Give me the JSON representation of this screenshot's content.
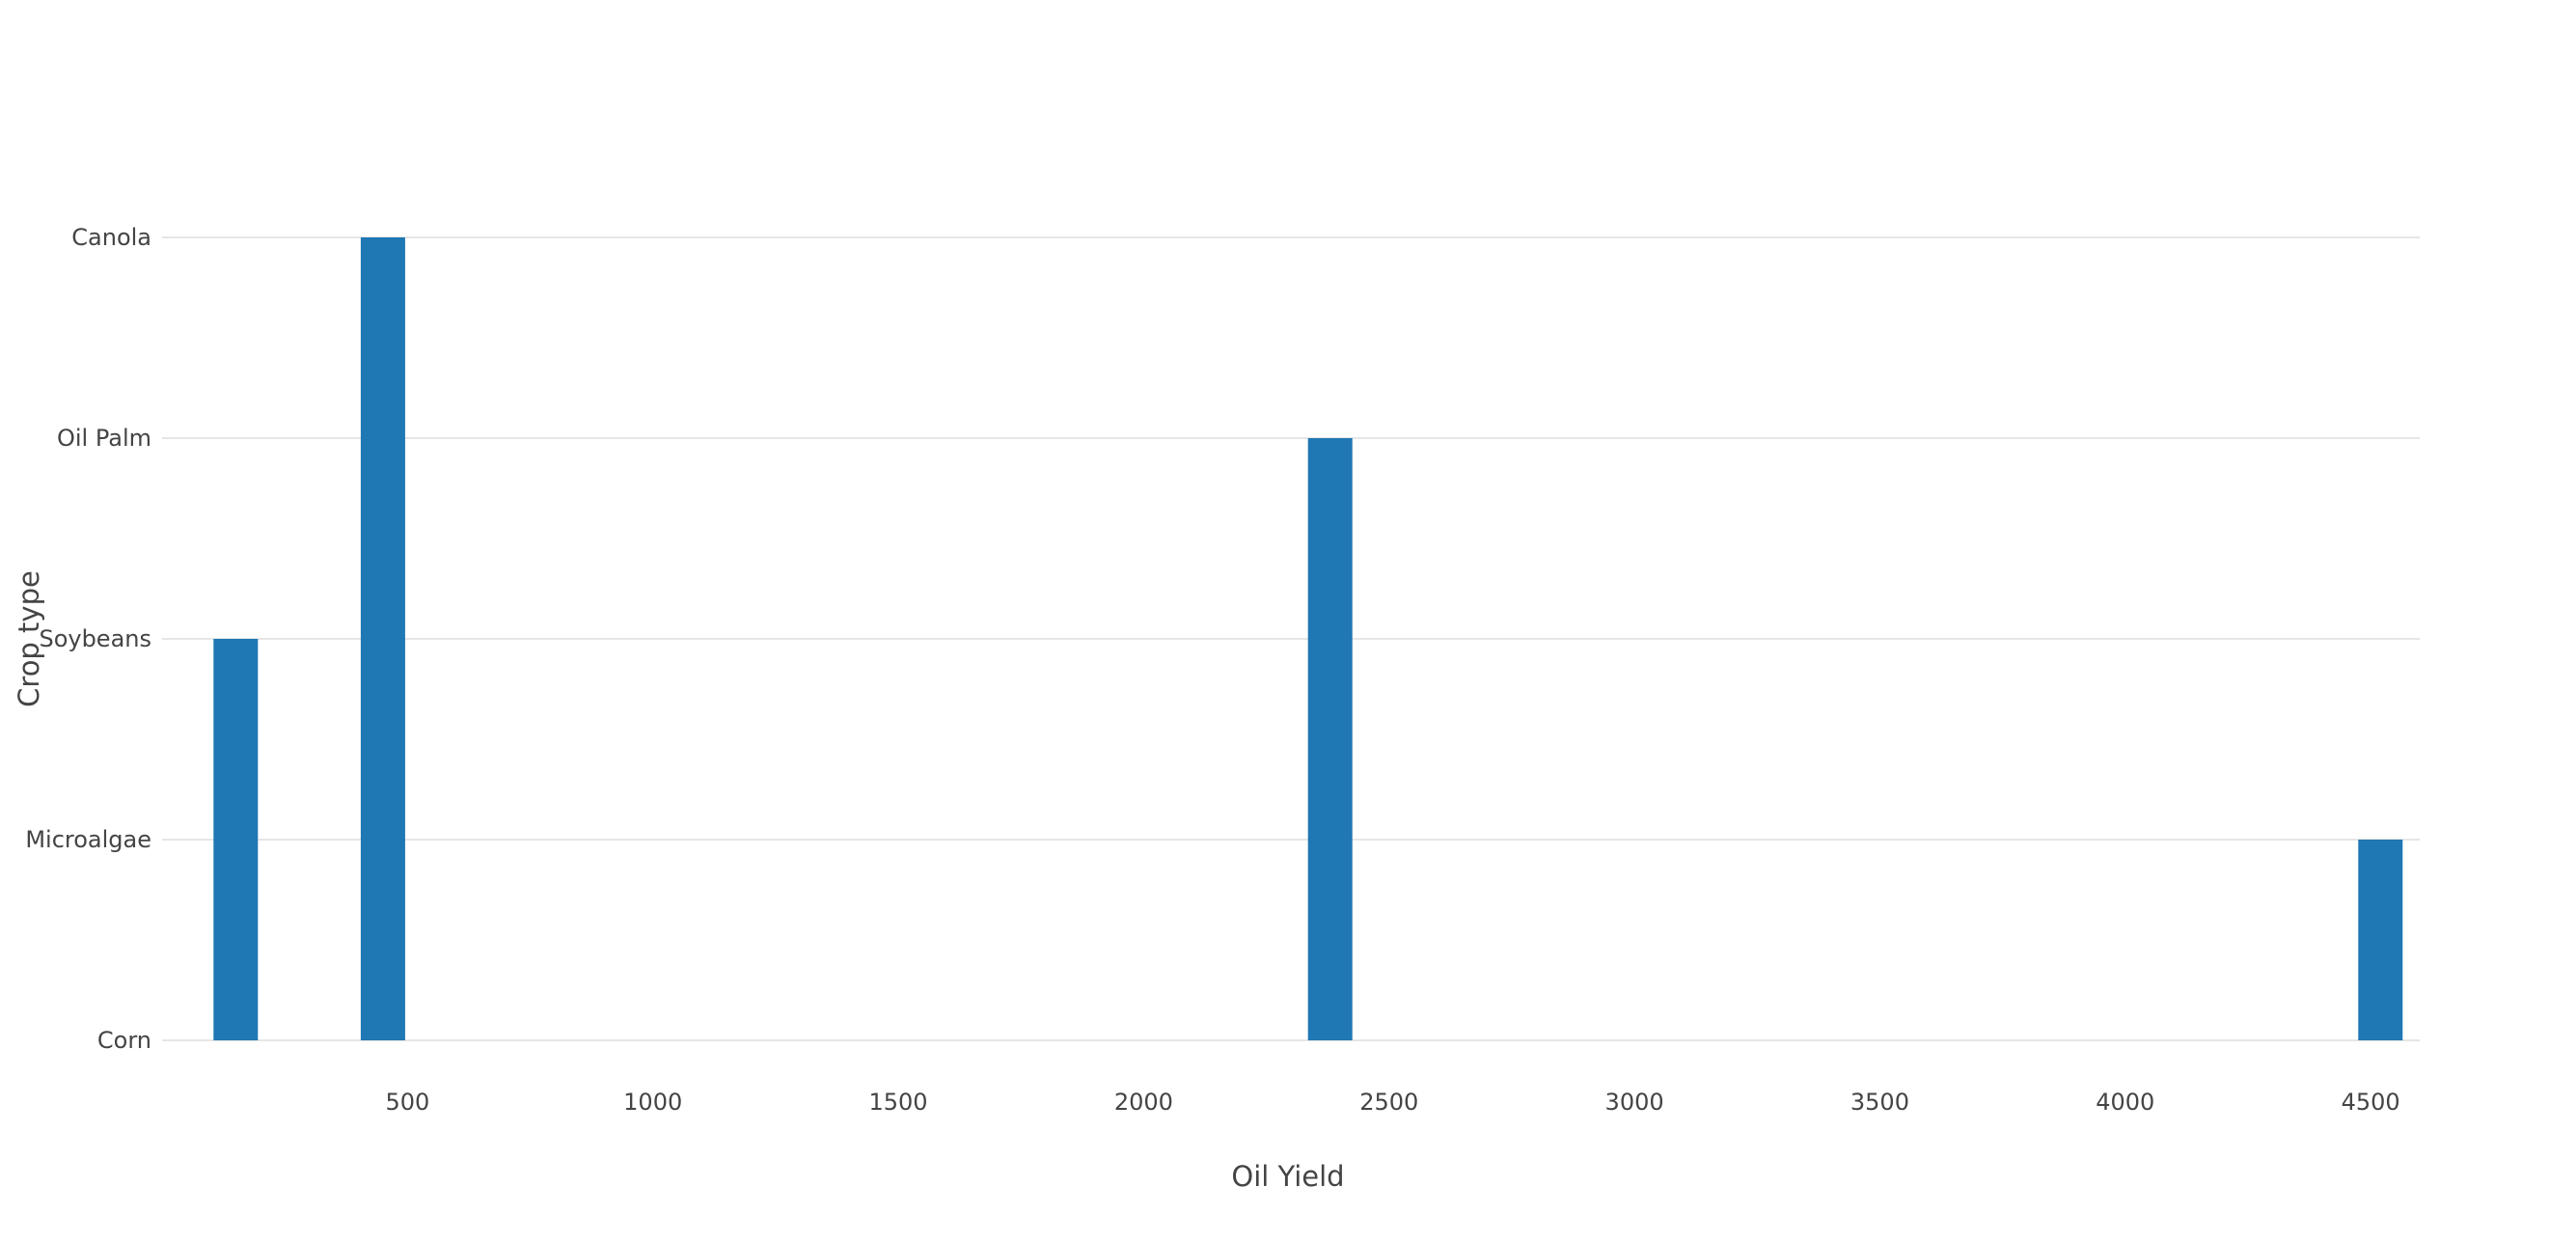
{
  "chart_data": {
    "type": "bar",
    "orientation": "vertical",
    "xlabel": "Oil Yield",
    "ylabel": "Crop type",
    "x_ticks": [
      500,
      1000,
      1500,
      2000,
      2500,
      3000,
      3500,
      4000,
      4500
    ],
    "y_categories": [
      "Corn",
      "Microalgae",
      "Soybeans",
      "Oil Palm",
      "Canola"
    ],
    "xlim": [
      0,
      4600
    ],
    "grid": true,
    "bar_color": "#1f77b4",
    "points": [
      {
        "x": 150,
        "y": "Soybeans"
      },
      {
        "x": 450,
        "y": "Canola"
      },
      {
        "x": 2380,
        "y": "Oil Palm"
      },
      {
        "x": 4520,
        "y": "Microalgae"
      }
    ]
  }
}
